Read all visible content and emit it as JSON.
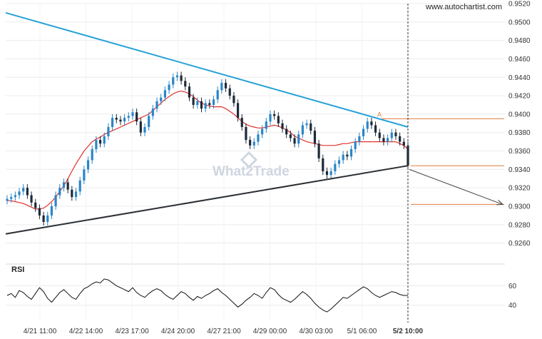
{
  "watermark_site": "www.autochartist.com",
  "brand_watermark": "What2Trade",
  "rsi_label": "RSI",
  "chart_data": {
    "type": "candlestick",
    "title": "",
    "price_axis": {
      "ticks": [
        "0.9520",
        "0.9500",
        "0.9480",
        "0.9460",
        "0.9440",
        "0.9420",
        "0.9400",
        "0.9380",
        "0.9360",
        "0.9340",
        "0.9320",
        "0.9300",
        "0.9280",
        "0.9260"
      ],
      "ylim": [
        0.9245,
        0.952
      ]
    },
    "rsi_axis": {
      "ticks": [
        "60",
        "40"
      ],
      "ylim": [
        25,
        75
      ]
    },
    "x_ticks": [
      "4/21 11:00",
      "4/22 14:00",
      "4/23 17:00",
      "4/24 20:00",
      "4/27 21:00",
      "4/29 00:00",
      "4/30 03:00",
      "5/1 06:00",
      "5/2 10:00"
    ],
    "price_series": [
      0.9308,
      0.931,
      0.9312,
      0.9316,
      0.932,
      0.9312,
      0.9304,
      0.9298,
      0.929,
      0.9283,
      0.929,
      0.93,
      0.9312,
      0.932,
      0.9326,
      0.9318,
      0.931,
      0.9316,
      0.9328,
      0.934,
      0.935,
      0.9362,
      0.9372,
      0.9368,
      0.9376,
      0.9386,
      0.9396,
      0.9394,
      0.9392,
      0.9396,
      0.9398,
      0.9402,
      0.9392,
      0.938,
      0.9386,
      0.9398,
      0.9406,
      0.9414,
      0.9418,
      0.9426,
      0.9432,
      0.944,
      0.9442,
      0.9436,
      0.943,
      0.9418,
      0.941,
      0.9414,
      0.9406,
      0.9412,
      0.941,
      0.9416,
      0.9426,
      0.9434,
      0.9428,
      0.942,
      0.9412,
      0.9396,
      0.9386,
      0.9372,
      0.9366,
      0.937,
      0.9378,
      0.9384,
      0.9392,
      0.94,
      0.9398,
      0.939,
      0.9384,
      0.9378,
      0.9374,
      0.9368,
      0.9378,
      0.9388,
      0.939,
      0.9382,
      0.9368,
      0.9352,
      0.9338,
      0.9334,
      0.9338,
      0.9346,
      0.935,
      0.9356,
      0.9354,
      0.9362,
      0.937,
      0.9376,
      0.9384,
      0.9392,
      0.9388,
      0.938,
      0.9374,
      0.937,
      0.9374,
      0.938,
      0.9376,
      0.937,
      0.9366,
      0.9344
    ],
    "moving_average": [
      0.9306,
      0.9306,
      0.9305,
      0.9304,
      0.9303,
      0.9301,
      0.9299,
      0.9297,
      0.9297,
      0.9298,
      0.9301,
      0.9305,
      0.931,
      0.9316,
      0.9322,
      0.933,
      0.9338,
      0.9346,
      0.9353,
      0.936,
      0.9365,
      0.937,
      0.9373,
      0.9375,
      0.9378,
      0.938,
      0.9382,
      0.9384,
      0.9386,
      0.9388,
      0.939,
      0.9392,
      0.9394,
      0.9396,
      0.9398,
      0.94,
      0.9404,
      0.9408,
      0.9412,
      0.9416,
      0.9419,
      0.9422,
      0.9424,
      0.9425,
      0.9424,
      0.9422,
      0.9419,
      0.9415,
      0.9412,
      0.941,
      0.9409,
      0.9408,
      0.9408,
      0.9408,
      0.9406,
      0.9403,
      0.94,
      0.9396,
      0.9392,
      0.9389,
      0.9387,
      0.9386,
      0.9385,
      0.9385,
      0.9386,
      0.9387,
      0.9388,
      0.9387,
      0.9385,
      0.9383,
      0.938,
      0.9376,
      0.9374,
      0.9372,
      0.937,
      0.9369,
      0.9368,
      0.9367,
      0.9366,
      0.9366,
      0.9366,
      0.9366,
      0.9367,
      0.9368,
      0.9368,
      0.9369,
      0.937,
      0.937,
      0.937,
      0.937,
      0.937,
      0.937,
      0.937,
      0.937,
      0.937,
      0.937,
      0.937,
      0.9368,
      0.9366,
      0.9362
    ],
    "rsi_series": [
      50,
      52,
      48,
      55,
      53,
      49,
      46,
      52,
      58,
      54,
      47,
      43,
      48,
      53,
      56,
      52,
      48,
      46,
      52,
      57,
      59,
      62,
      64,
      63,
      67,
      66,
      63,
      60,
      58,
      56,
      54,
      58,
      53,
      50,
      48,
      52,
      55,
      57,
      55,
      51,
      48,
      46,
      50,
      54,
      52,
      48,
      45,
      49,
      47,
      50,
      52,
      55,
      57,
      53,
      50,
      46,
      42,
      38,
      41,
      45,
      48,
      52,
      50,
      47,
      53,
      58,
      56,
      51,
      47,
      45,
      43,
      46,
      50,
      54,
      51,
      47,
      42,
      38,
      35,
      33,
      36,
      40,
      44,
      48,
      47,
      50,
      53,
      56,
      59,
      57,
      53,
      50,
      48,
      50,
      52,
      54,
      53,
      51,
      50,
      50
    ],
    "resistance_line": {
      "start": 0.951,
      "end": 0.9386
    },
    "support_line": {
      "start": 0.927,
      "end": 0.9344
    },
    "pattern_point_label": "A",
    "level_lines": [
      0.9395,
      0.9344,
      0.9302
    ],
    "projection": {
      "from": 0.934,
      "to": 0.9302
    }
  },
  "colors": {
    "candle_up": "#2a86c8",
    "candle_down": "#1d2a38",
    "moving_average": "#e0312d",
    "resistance": "#27a2d8",
    "support": "#2b2f33",
    "level": "#e07b39",
    "grid": "#ececec"
  }
}
